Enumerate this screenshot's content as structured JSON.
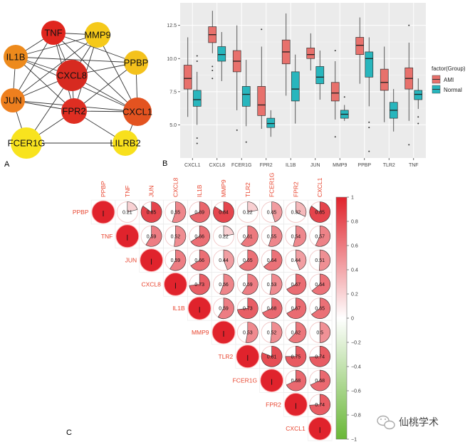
{
  "panel_labels": [
    "A",
    "B",
    "C"
  ],
  "watermark": "仙桃学术",
  "chart_data": [
    {
      "type": "network",
      "nodes": [
        {
          "id": "TNF",
          "color": "#e0261e"
        },
        {
          "id": "MMP9",
          "color": "#f5c91a"
        },
        {
          "id": "IL1B",
          "color": "#ed8a1c"
        },
        {
          "id": "PPBP",
          "color": "#f4c21c"
        },
        {
          "id": "CXCL8",
          "color": "#d72a20"
        },
        {
          "id": "JUN",
          "color": "#ee7f1e"
        },
        {
          "id": "FPR2",
          "color": "#df2e22"
        },
        {
          "id": "CXCL1",
          "color": "#e35320"
        },
        {
          "id": "FCER1G",
          "color": "#f8e31e"
        },
        {
          "id": "LILRB2",
          "color": "#f8e01d"
        }
      ],
      "edges": [
        [
          "TNF",
          "MMP9"
        ],
        [
          "TNF",
          "IL1B"
        ],
        [
          "TNF",
          "CXCL8"
        ],
        [
          "TNF",
          "JUN"
        ],
        [
          "TNF",
          "FPR2"
        ],
        [
          "TNF",
          "CXCL1"
        ],
        [
          "TNF",
          "PPBP"
        ],
        [
          "MMP9",
          "IL1B"
        ],
        [
          "MMP9",
          "CXCL8"
        ],
        [
          "MMP9",
          "JUN"
        ],
        [
          "MMP9",
          "FPR2"
        ],
        [
          "MMP9",
          "CXCL1"
        ],
        [
          "IL1B",
          "CXCL8"
        ],
        [
          "IL1B",
          "JUN"
        ],
        [
          "IL1B",
          "FPR2"
        ],
        [
          "IL1B",
          "CXCL1"
        ],
        [
          "IL1B",
          "PPBP"
        ],
        [
          "PPBP",
          "CXCL8"
        ],
        [
          "PPBP",
          "CXCL1"
        ],
        [
          "PPBP",
          "FPR2"
        ],
        [
          "CXCL8",
          "JUN"
        ],
        [
          "CXCL8",
          "FPR2"
        ],
        [
          "CXCL8",
          "CXCL1"
        ],
        [
          "CXCL8",
          "FCER1G"
        ],
        [
          "JUN",
          "FPR2"
        ],
        [
          "JUN",
          "CXCL1"
        ],
        [
          "JUN",
          "FCER1G"
        ],
        [
          "FPR2",
          "CXCL1"
        ],
        [
          "FPR2",
          "FCER1G"
        ],
        [
          "FPR2",
          "LILRB2"
        ],
        [
          "FCER1G",
          "LILRB2"
        ],
        [
          "CXCL1",
          "LILRB2"
        ]
      ]
    },
    {
      "type": "boxplot",
      "categories": [
        "CXCL1",
        "CXCL8",
        "FCER1G",
        "FPR2",
        "IL1B",
        "JUN",
        "MMP9",
        "PPBP",
        "TLR2",
        "TNF"
      ],
      "yticks": [
        5.0,
        7.5,
        10.0,
        12.5
      ],
      "ylim": [
        2.5,
        14.2
      ],
      "legend_title": "factor(Group)",
      "legend_position": "right",
      "series": [
        {
          "name": "AMI",
          "color": "#e8716c",
          "boxes": [
            {
              "whisker_low": 5.6,
              "q1": 7.7,
              "median": 8.5,
              "q3": 9.5,
              "whisker_high": 11.6,
              "outliers": []
            },
            {
              "whisker_low": 10.4,
              "q1": 11.2,
              "median": 11.8,
              "q3": 12.4,
              "whisker_high": 13.6,
              "outliers": [
                8.5,
                9.1,
                9.4
              ]
            },
            {
              "whisker_low": 6.1,
              "q1": 9.0,
              "median": 9.8,
              "q3": 10.6,
              "whisker_high": 12.5,
              "outliers": [
                4.6
              ]
            },
            {
              "whisker_low": 4.7,
              "q1": 5.7,
              "median": 6.5,
              "q3": 7.9,
              "whisker_high": 10.9,
              "outliers": [
                12.2
              ]
            },
            {
              "whisker_low": 7.2,
              "q1": 9.6,
              "median": 10.5,
              "q3": 11.4,
              "whisker_high": 13.4,
              "outliers": []
            },
            {
              "whisker_low": 9.1,
              "q1": 10.0,
              "median": 10.3,
              "q3": 10.8,
              "whisker_high": 11.9,
              "outliers": []
            },
            {
              "whisker_low": 5.4,
              "q1": 6.8,
              "median": 7.4,
              "q3": 8.2,
              "whisker_high": 9.8,
              "outliers": [
                4.1,
                10.6
              ]
            },
            {
              "whisker_low": 8.1,
              "q1": 10.3,
              "median": 11.0,
              "q3": 11.6,
              "whisker_high": 13.1,
              "outliers": []
            },
            {
              "whisker_low": 5.2,
              "q1": 7.6,
              "median": 8.2,
              "q3": 9.2,
              "whisker_high": 10.9,
              "outliers": []
            },
            {
              "whisker_low": 5.3,
              "q1": 7.7,
              "median": 8.5,
              "q3": 9.3,
              "whisker_high": 11.2,
              "outliers": [
                3.5,
                12.5
              ]
            }
          ]
        },
        {
          "name": "Normal",
          "color": "#28b6bd",
          "boxes": [
            {
              "whisker_low": 5.0,
              "q1": 6.4,
              "median": 6.9,
              "q3": 7.6,
              "whisker_high": 9.0,
              "outliers": [
                3.6,
                4.0,
                9.8,
                10.2
              ]
            },
            {
              "whisker_low": 8.3,
              "q1": 9.8,
              "median": 10.3,
              "q3": 10.9,
              "whisker_high": 12.0,
              "outliers": []
            },
            {
              "whisker_low": 4.9,
              "q1": 6.4,
              "median": 7.3,
              "q3": 7.9,
              "whisker_high": 9.9,
              "outliers": [
                3.7
              ]
            },
            {
              "whisker_low": 4.1,
              "q1": 4.8,
              "median": 5.1,
              "q3": 5.5,
              "whisker_high": 6.1,
              "outliers": []
            },
            {
              "whisker_low": 5.1,
              "q1": 6.8,
              "median": 7.7,
              "q3": 9.0,
              "whisker_high": 10.3,
              "outliers": []
            },
            {
              "whisker_low": 6.9,
              "q1": 8.1,
              "median": 8.6,
              "q3": 9.4,
              "whisker_high": 10.6,
              "outliers": []
            },
            {
              "whisker_low": 5.3,
              "q1": 5.5,
              "median": 5.8,
              "q3": 6.1,
              "whisker_high": 6.5,
              "outliers": [
                7.1
              ]
            },
            {
              "whisker_low": 6.4,
              "q1": 8.6,
              "median": 10.0,
              "q3": 10.5,
              "whisker_high": 11.6,
              "outliers": [
                3.0,
                4.8,
                5.2
              ]
            },
            {
              "whisker_low": 4.5,
              "q1": 5.5,
              "median": 6.1,
              "q3": 6.7,
              "whisker_high": 7.7,
              "outliers": []
            },
            {
              "whisker_low": 6.2,
              "q1": 6.9,
              "median": 7.3,
              "q3": 7.6,
              "whisker_high": 8.5,
              "outliers": [
                5.1,
                5.6
              ]
            }
          ]
        }
      ]
    },
    {
      "type": "correlation_matrix",
      "genes": [
        "PPBP",
        "TNF",
        "JUN",
        "CXCL8",
        "IL1B",
        "MMP9",
        "TLR2",
        "FCER1G",
        "FPR2",
        "CXCL1"
      ],
      "upper_values": [
        [
          0.21,
          0.85,
          0.55,
          0.69,
          0.84,
          0.22,
          0.45,
          0.32,
          0.85
        ],
        [
          0.59,
          0.52,
          0.66,
          0.22,
          0.61,
          0.55,
          0.54,
          0.57
        ],
        [
          0.59,
          0.66,
          0.44,
          0.65,
          0.64,
          0.44,
          0.51
        ],
        [
          0.73,
          0.56,
          0.59,
          0.53,
          0.67,
          0.64
        ],
        [
          0.59,
          0.73,
          0.68,
          0.67,
          0.65
        ],
        [
          0.53,
          0.52,
          0.62,
          0.5
        ],
        [
          0.81,
          0.75,
          0.74
        ],
        [
          0.68,
          0.68
        ],
        [
          0.74
        ]
      ],
      "colorbar_ticks": [
        "1",
        "0.8",
        "0.6",
        "0.4",
        "0.2",
        "0",
        "−0.2",
        "−0.4",
        "−0.6",
        "−0.8",
        "−1"
      ],
      "color_positive": "#e0232c",
      "color_negative": "#69b737"
    }
  ]
}
